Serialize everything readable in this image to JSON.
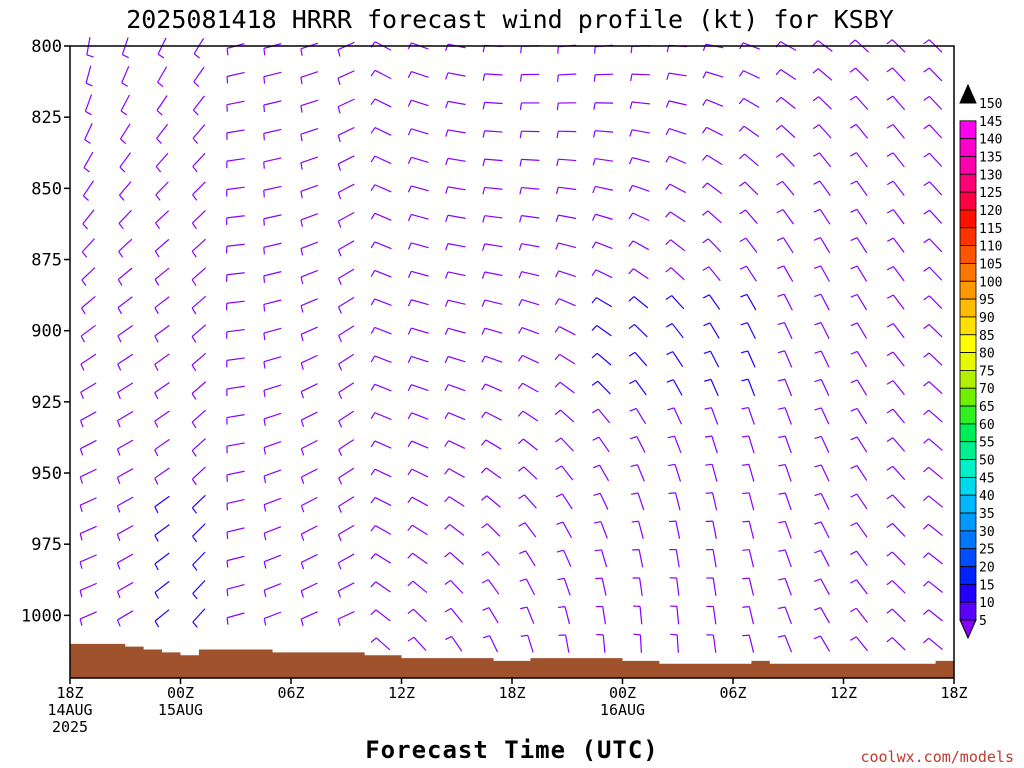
{
  "title": "2025081418 HRRR forecast wind profile (kt) for KSBY",
  "credit": "coolwx.com/models",
  "chart_data": {
    "type": "wind-barb-profile",
    "title": "2025081418 HRRR forecast wind profile (kt) for KSBY",
    "xlabel": "Forecast Time (UTC)",
    "ylabel": "",
    "ylim": [
      1022,
      800
    ],
    "xlim": [
      0,
      48
    ],
    "y_ticks": [
      800,
      825,
      850,
      875,
      900,
      925,
      950,
      975,
      1000
    ],
    "y_tick_labels": [
      "800",
      "825",
      "850",
      "875",
      "900",
      "925",
      "950",
      "975",
      "1000"
    ],
    "x_ticks": [
      {
        "hour": 0,
        "lines": [
          "18Z",
          "14AUG",
          "2025"
        ]
      },
      {
        "hour": 6,
        "lines": [
          "00Z",
          "15AUG"
        ]
      },
      {
        "hour": 12,
        "lines": [
          "06Z"
        ]
      },
      {
        "hour": 18,
        "lines": [
          "12Z"
        ]
      },
      {
        "hour": 24,
        "lines": [
          "18Z"
        ]
      },
      {
        "hour": 30,
        "lines": [
          "00Z",
          "16AUG"
        ]
      },
      {
        "hour": 36,
        "lines": [
          "06Z"
        ]
      },
      {
        "hour": 42,
        "lines": [
          "12Z"
        ]
      },
      {
        "hour": 48,
        "lines": [
          "18Z"
        ]
      }
    ],
    "barb_hours": [
      1,
      3,
      5,
      7,
      9,
      11,
      13,
      15,
      17,
      19,
      21,
      23,
      25,
      27,
      29,
      31,
      33,
      35,
      37,
      39,
      41,
      43,
      45,
      47
    ],
    "barb_levels": [
      800,
      810,
      820,
      830,
      840,
      850,
      860,
      870,
      880,
      890,
      900,
      910,
      920,
      930,
      940,
      950,
      960,
      970,
      980,
      990,
      1000,
      1010
    ],
    "surface_pressure": [
      [
        0,
        1010
      ],
      [
        2,
        1010
      ],
      [
        3,
        1011
      ],
      [
        4,
        1012
      ],
      [
        5,
        1013
      ],
      [
        6,
        1014
      ],
      [
        7,
        1012
      ],
      [
        8,
        1012
      ],
      [
        9,
        1012
      ],
      [
        10,
        1012
      ],
      [
        11,
        1013
      ],
      [
        12,
        1013
      ],
      [
        13,
        1013
      ],
      [
        14,
        1013
      ],
      [
        15,
        1013
      ],
      [
        16,
        1014
      ],
      [
        17,
        1014
      ],
      [
        18,
        1015
      ],
      [
        19,
        1015
      ],
      [
        20,
        1015
      ],
      [
        21,
        1015
      ],
      [
        22,
        1015
      ],
      [
        23,
        1016
      ],
      [
        24,
        1016
      ],
      [
        25,
        1015
      ],
      [
        26,
        1015
      ],
      [
        27,
        1015
      ],
      [
        28,
        1015
      ],
      [
        29,
        1015
      ],
      [
        30,
        1016
      ],
      [
        31,
        1016
      ],
      [
        32,
        1017
      ],
      [
        33,
        1017
      ],
      [
        34,
        1017
      ],
      [
        35,
        1017
      ],
      [
        36,
        1017
      ],
      [
        37,
        1016
      ],
      [
        38,
        1017
      ],
      [
        39,
        1017
      ],
      [
        40,
        1017
      ],
      [
        41,
        1017
      ],
      [
        42,
        1017
      ],
      [
        43,
        1017
      ],
      [
        44,
        1017
      ],
      [
        45,
        1017
      ],
      [
        46,
        1017
      ],
      [
        47,
        1016
      ],
      [
        48,
        1016
      ]
    ],
    "surface_color": "#a0522d",
    "wind_barbs_note": "",
    "colorbar": {
      "levels": [
        5,
        10,
        15,
        20,
        25,
        30,
        35,
        40,
        45,
        50,
        55,
        60,
        65,
        70,
        75,
        80,
        85,
        90,
        95,
        100,
        105,
        110,
        115,
        120,
        125,
        130,
        135,
        140,
        145,
        150
      ],
      "colors": [
        "#8800ff",
        "#5a00ff",
        "#2200ff",
        "#0022ff",
        "#004cff",
        "#0077ff",
        "#0099ff",
        "#00b8ff",
        "#00d8ee",
        "#00f0c8",
        "#00f090",
        "#00ee55",
        "#30f020",
        "#70f000",
        "#b0f000",
        "#e8f800",
        "#ffff00",
        "#ffe000",
        "#ffbb00",
        "#ff9900",
        "#ff7700",
        "#ff5500",
        "#ff3300",
        "#ff1100",
        "#ff0044",
        "#ff0077",
        "#ff00aa",
        "#ff00cc",
        "#ff00ee",
        "#000000"
      ]
    }
  }
}
